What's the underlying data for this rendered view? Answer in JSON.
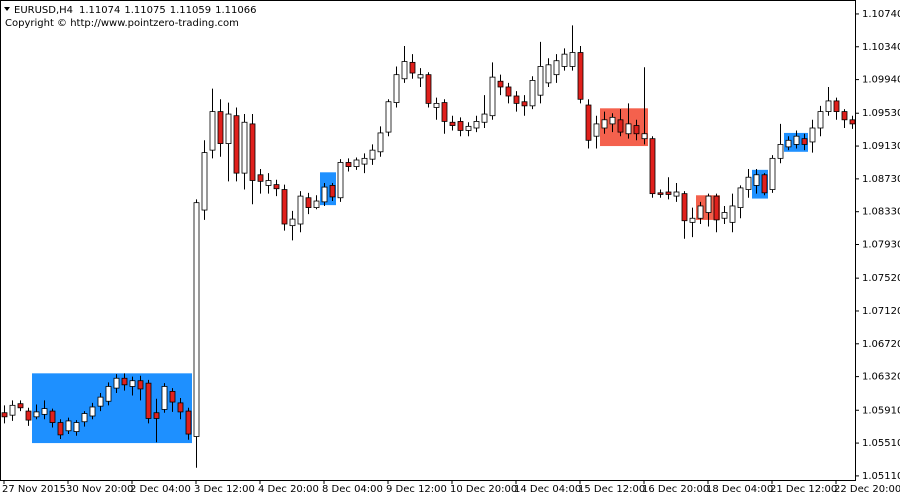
{
  "chart_data": {
    "type": "candlestick",
    "symbol": "EURUSD,H4",
    "quote": [
      1.11074,
      1.11075,
      1.11059,
      1.11066
    ],
    "copyright": "Copyright © http://www.pointzero-trading.com",
    "up_color": "#ffffff",
    "down_color": "#e0201c",
    "categories": [
      "27 Nov 2015",
      null,
      null,
      null,
      null,
      null,
      null,
      null,
      "30 Nov 20:00",
      null,
      null,
      null,
      null,
      null,
      null,
      null,
      "2 Dec 04:00",
      null,
      null,
      null,
      null,
      null,
      null,
      null,
      "3 Dec 12:00",
      null,
      null,
      null,
      null,
      null,
      null,
      null,
      "4 Dec 20:00",
      null,
      null,
      null,
      null,
      null,
      null,
      null,
      "8 Dec 04:00",
      null,
      null,
      null,
      null,
      null,
      null,
      null,
      "9 Dec 12:00",
      null,
      null,
      null,
      null,
      null,
      null,
      null,
      "10 Dec 20:00",
      null,
      null,
      null,
      null,
      null,
      null,
      null,
      "14 Dec 04:00",
      null,
      null,
      null,
      null,
      null,
      null,
      null,
      "15 Dec 12:00",
      null,
      null,
      null,
      null,
      null,
      null,
      null,
      "16 Dec 20:00",
      null,
      null,
      null,
      null,
      null,
      null,
      null,
      "18 Dec 04:00",
      null,
      null,
      null,
      null,
      null,
      null,
      null,
      "21 Dec 12:00",
      null,
      null,
      null,
      null,
      null,
      null,
      null,
      "22 Dec 20:00",
      null,
      null
    ],
    "open": [
      1.0588,
      1.0585,
      1.0599,
      1.059,
      1.0583,
      1.0586,
      1.059,
      1.0576,
      1.0566,
      1.0565,
      1.0577,
      1.0584,
      1.0596,
      1.0602,
      1.0618,
      1.063,
      1.062,
      1.0627,
      1.0624,
      1.0588,
      1.0592,
      1.0614,
      1.06,
      1.059,
      1.0559,
      1.0835,
      1.0908,
      1.0955,
      1.0916,
      1.095,
      1.088,
      1.094,
      1.0878,
      1.0865,
      1.0866,
      1.086,
      1.0816,
      1.0818,
      1.085,
      1.0838,
      1.0845,
      1.0865,
      1.085,
      1.0893,
      1.0888,
      1.0891,
      1.0897,
      1.0906,
      1.093,
      1.0966,
      1.0995,
      1.1015,
      1.0996,
      1.1,
      1.096,
      1.0966,
      1.0942,
      1.0943,
      1.0932,
      1.0935,
      1.0942,
      1.095,
      1.0992,
      1.0985,
      1.0974,
      1.0967,
      1.0962,
      1.0975,
      1.099,
      1.1,
      1.101,
      1.101,
      1.1027,
      1.0963,
      1.0925,
      1.0935,
      1.094,
      1.0945,
      1.0928,
      1.0938,
      1.0922,
      1.0922,
      1.0856,
      1.0857,
      1.0852,
      1.0855,
      1.082,
      1.0825,
      1.0832,
      1.0852,
      1.0825,
      1.082,
      1.0838,
      1.086,
      1.0865,
      1.0878,
      1.086,
      1.0898,
      1.0912,
      1.0915,
      1.0922,
      1.0918,
      1.0935,
      1.0955,
      1.0968,
      1.0955,
      1.0945
    ],
    "high": [
      1.0597,
      1.0603,
      1.0603,
      1.0594,
      1.0598,
      1.0603,
      1.0593,
      1.058,
      1.0582,
      1.0579,
      1.059,
      1.06,
      1.0612,
      1.0625,
      1.0635,
      1.0636,
      1.0632,
      1.0633,
      1.0628,
      1.0605,
      1.0624,
      1.0618,
      1.0606,
      1.0594,
      1.0848,
      1.092,
      1.0983,
      1.097,
      1.0966,
      1.096,
      1.0952,
      1.0952,
      1.0885,
      1.088,
      1.0872,
      1.0866,
      1.0834,
      1.0858,
      1.0856,
      1.0853,
      1.0868,
      1.0868,
      1.0897,
      1.0898,
      1.0899,
      1.0904,
      1.0915,
      1.0937,
      1.097,
      1.101,
      1.1035,
      1.1025,
      1.1008,
      1.1003,
      1.0972,
      1.097,
      1.095,
      1.0948,
      1.0942,
      1.095,
      1.0975,
      1.1015,
      1.1,
      1.099,
      1.098,
      1.0975,
      1.0998,
      1.104,
      1.102,
      1.1025,
      1.1032,
      1.106,
      1.1035,
      1.097,
      1.095,
      1.0955,
      1.0953,
      1.0958,
      1.0965,
      1.0945,
      1.1009,
      1.0925,
      1.086,
      1.0875,
      1.0868,
      1.0858,
      1.0838,
      1.0845,
      1.0855,
      1.0855,
      1.084,
      1.0855,
      1.0865,
      1.0885,
      1.0885,
      1.088,
      1.0902,
      1.094,
      1.0925,
      1.0932,
      1.0928,
      1.0945,
      1.0962,
      1.0985,
      1.0972,
      1.0958,
      1.095
    ],
    "low": [
      1.0575,
      1.0578,
      1.059,
      1.0572,
      1.058,
      1.058,
      1.057,
      1.0556,
      1.0562,
      1.056,
      1.0571,
      1.058,
      1.059,
      1.0597,
      1.0612,
      1.0615,
      1.0609,
      1.0603,
      1.0575,
      1.0552,
      1.0588,
      1.0589,
      1.058,
      1.0555,
      1.0521,
      1.0823,
      1.0898,
      1.09,
      1.087,
      1.087,
      1.086,
      1.0842,
      1.0855,
      1.0855,
      1.0852,
      1.081,
      1.0798,
      1.0808,
      1.083,
      1.0836,
      1.084,
      1.0846,
      1.0845,
      1.0882,
      1.0884,
      1.088,
      1.089,
      1.09,
      1.0925,
      1.096,
      1.099,
      1.0995,
      1.0985,
      1.096,
      1.0945,
      1.0928,
      1.0932,
      1.0925,
      1.0925,
      1.093,
      1.0935,
      1.0945,
      1.0975,
      1.0965,
      1.0955,
      1.095,
      1.0958,
      1.0965,
      1.0985,
      1.099,
      1.1005,
      1.1005,
      1.0965,
      1.091,
      1.091,
      1.0928,
      1.093,
      1.0925,
      1.0922,
      1.092,
      1.0915,
      1.085,
      1.085,
      1.0848,
      1.0845,
      1.08,
      1.0802,
      1.0818,
      1.0815,
      1.0808,
      1.0818,
      1.0808,
      1.0825,
      1.085,
      1.0855,
      1.0853,
      1.0856,
      1.0892,
      1.0908,
      1.091,
      1.0908,
      1.0905,
      1.0925,
      1.095,
      1.0945,
      1.0935,
      1.0934
    ],
    "close": [
      1.0583,
      1.0597,
      1.0594,
      1.0579,
      1.0589,
      1.0593,
      1.0576,
      1.0561,
      1.0578,
      1.0576,
      1.0587,
      1.0595,
      1.0607,
      1.062,
      1.063,
      1.0622,
      1.0627,
      1.0617,
      1.0581,
      1.0581,
      1.062,
      1.0601,
      1.0589,
      1.0562,
      1.0844,
      1.0905,
      1.0955,
      1.0916,
      1.0952,
      1.088,
      1.0942,
      1.0871,
      1.087,
      1.0871,
      1.0861,
      1.0818,
      1.0824,
      1.0852,
      1.0838,
      1.0846,
      1.0863,
      1.0851,
      1.0893,
      1.0888,
      1.0896,
      1.0898,
      1.0908,
      1.0929,
      1.0967,
      1.1,
      1.1016,
      1.1002,
      1.1,
      1.0965,
      1.0965,
      1.0943,
      1.0938,
      1.0932,
      1.0937,
      1.0943,
      1.0952,
      1.0997,
      1.0985,
      1.0974,
      1.0965,
      1.0962,
      1.0993,
      1.101,
      1.1012,
      1.1017,
      1.1025,
      1.1027,
      1.097,
      1.092,
      1.094,
      1.0945,
      1.0948,
      1.093,
      1.094,
      1.0928,
      1.0928,
      1.0855,
      1.0854,
      1.0854,
      1.0857,
      1.0822,
      1.0825,
      1.084,
      1.0852,
      1.0823,
      1.0832,
      1.084,
      1.0862,
      1.0875,
      1.0878,
      1.0856,
      1.0898,
      1.0915,
      1.092,
      1.0925,
      1.0915,
      1.0935,
      1.0955,
      1.0968,
      1.0955,
      1.0945,
      1.094
    ],
    "zones": [
      {
        "from": 4,
        "to": 23,
        "low": 1.0551,
        "high": 1.0636,
        "color": "#1e90ff"
      },
      {
        "from": 40,
        "to": 41,
        "low": 1.0841,
        "high": 1.0881,
        "color": "#1e90ff"
      },
      {
        "from": 75,
        "to": 80,
        "low": 1.0913,
        "high": 1.0959,
        "color": "#f4614d"
      },
      {
        "from": 87,
        "to": 89,
        "low": 1.0823,
        "high": 1.0853,
        "color": "#f4614d"
      },
      {
        "from": 94,
        "to": 95,
        "low": 1.0849,
        "high": 1.0884,
        "color": "#1e90ff"
      },
      {
        "from": 98,
        "to": 100,
        "low": 1.0906,
        "high": 1.0929,
        "color": "#1e90ff"
      }
    ],
    "ylim": [
      1.0506,
      1.1091
    ],
    "yticks": [
      {
        "value": 1.1074,
        "label": "1.10740"
      },
      {
        "value": 1.1034,
        "label": "1.10340"
      },
      {
        "value": 1.0994,
        "label": "1.09940"
      },
      {
        "value": 1.0953,
        "label": "1.09530"
      },
      {
        "value": 1.0913,
        "label": "1.09130"
      },
      {
        "value": 1.0873,
        "label": "1.08730"
      },
      {
        "value": 1.0833,
        "label": "1.08330"
      },
      {
        "value": 1.0793,
        "label": "1.07930"
      },
      {
        "value": 1.0752,
        "label": "1.07520"
      },
      {
        "value": 1.0712,
        "label": "1.07120"
      },
      {
        "value": 1.0672,
        "label": "1.06720"
      },
      {
        "value": 1.0632,
        "label": "1.06320"
      },
      {
        "value": 1.0591,
        "label": "1.05910"
      },
      {
        "value": 1.0551,
        "label": "1.05510"
      },
      {
        "value": 1.0511,
        "label": "1.05110"
      }
    ]
  }
}
